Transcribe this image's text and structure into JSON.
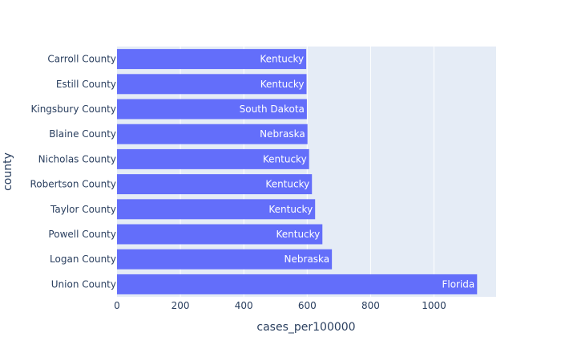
{
  "chart_data": {
    "type": "bar",
    "orientation": "horizontal",
    "title": "",
    "xlabel": "cases_per100000",
    "ylabel": "county",
    "xlim": [
      0,
      1200
    ],
    "x_ticks": [
      0,
      200,
      400,
      600,
      800,
      1000
    ],
    "grid": true,
    "bar_color": "#636efa",
    "plot_background": "#e5ecf6",
    "categories": [
      "Carroll County",
      "Estill County",
      "Kingsbury County",
      "Blaine County",
      "Nicholas County",
      "Robertson County",
      "Taylor County",
      "Powell County",
      "Logan County",
      "Union County"
    ],
    "values": [
      597,
      598,
      599,
      601,
      606,
      615,
      625,
      648,
      678,
      1136
    ],
    "bar_text": [
      "Kentucky",
      "Kentucky",
      "South Dakota",
      "Nebraska",
      "Kentucky",
      "Kentucky",
      "Kentucky",
      "Kentucky",
      "Nebraska",
      "Florida"
    ]
  }
}
